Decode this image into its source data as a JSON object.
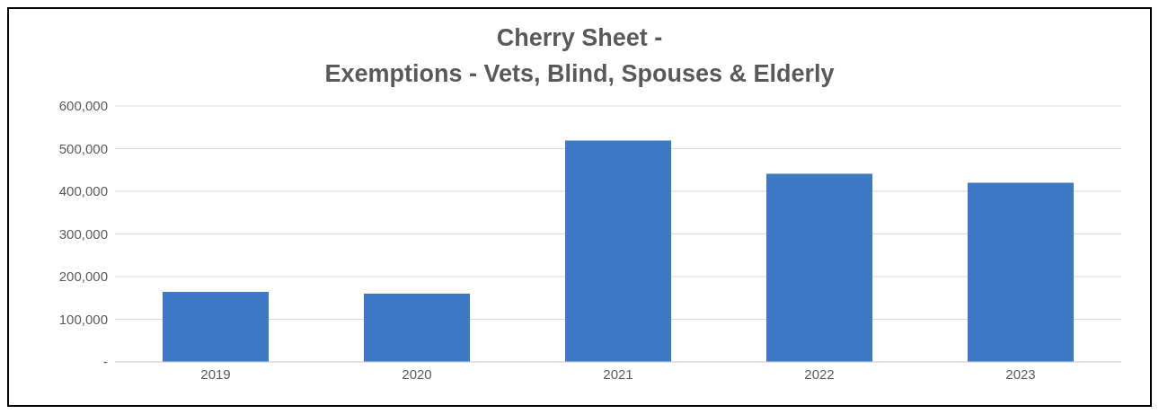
{
  "chart_data": {
    "type": "bar",
    "title": "Cherry Sheet -\nExemptions - Vets, Blind, Spouses & Elderly",
    "categories": [
      "2019",
      "2020",
      "2021",
      "2022",
      "2023"
    ],
    "values": [
      164000,
      160000,
      519000,
      441000,
      420000
    ],
    "color": "#3d78c4",
    "ylim": [
      0,
      600000
    ],
    "yticks": [
      {
        "value": 0,
        "label": "-"
      },
      {
        "value": 100000,
        "label": "100,000"
      },
      {
        "value": 200000,
        "label": "200,000"
      },
      {
        "value": 300000,
        "label": "300,000"
      },
      {
        "value": 400000,
        "label": "400,000"
      },
      {
        "value": 500000,
        "label": "500,000"
      },
      {
        "value": 600000,
        "label": "600,000"
      }
    ],
    "grid": "y"
  }
}
